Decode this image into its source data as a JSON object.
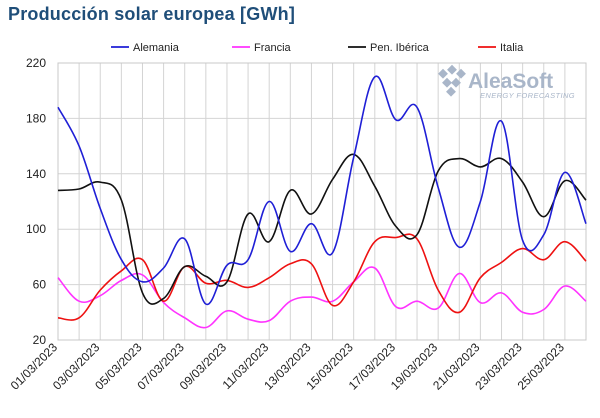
{
  "title": "Producción solar europea [GWh]",
  "watermark": {
    "brand": "AleaSoft",
    "tagline": "ENERGY FORECASTING",
    "color": "#a9b6c9"
  },
  "chart_data": {
    "type": "line",
    "title": "Producción solar europea [GWh]",
    "xlabel": "",
    "ylabel": "",
    "ylim": [
      20,
      220
    ],
    "yticks": [
      20,
      60,
      100,
      140,
      180,
      220
    ],
    "grid": true,
    "legend_position": "top",
    "x": [
      "01/03/2023",
      "02/03/2023",
      "03/03/2023",
      "04/03/2023",
      "05/03/2023",
      "06/03/2023",
      "07/03/2023",
      "08/03/2023",
      "09/03/2023",
      "10/03/2023",
      "11/03/2023",
      "12/03/2023",
      "13/03/2023",
      "14/03/2023",
      "15/03/2023",
      "16/03/2023",
      "17/03/2023",
      "18/03/2023",
      "19/03/2023",
      "20/03/2023",
      "21/03/2023",
      "22/03/2023",
      "23/03/2023",
      "24/03/2023",
      "25/03/2023",
      "26/03/2023"
    ],
    "xtick_labels": [
      "01/03/2023",
      "03/03/2023",
      "05/03/2023",
      "07/03/2023",
      "09/03/2023",
      "11/03/2023",
      "13/03/2023",
      "15/03/2023",
      "17/03/2023",
      "19/03/2023",
      "21/03/2023",
      "23/03/2023",
      "25/03/2023"
    ],
    "series": [
      {
        "name": "Alemania",
        "color": "#1f1fd6",
        "values": [
          188,
          160,
          115,
          78,
          62,
          72,
          93,
          46,
          74,
          78,
          120,
          84,
          104,
          83,
          152,
          210,
          179,
          188,
          130,
          87,
          120,
          178,
          92,
          96,
          141,
          104
        ]
      },
      {
        "name": "Francia",
        "color": "#ff33ff",
        "values": [
          65,
          48,
          52,
          63,
          67,
          47,
          36,
          29,
          41,
          35,
          34,
          48,
          51,
          48,
          62,
          72,
          44,
          48,
          43,
          68,
          47,
          54,
          40,
          42,
          59,
          48
        ]
      },
      {
        "name": "Pen. Ibérica",
        "color": "#111111",
        "values": [
          128,
          129,
          134,
          121,
          54,
          50,
          73,
          66,
          62,
          111,
          91,
          128,
          111,
          136,
          154,
          131,
          102,
          96,
          142,
          151,
          145,
          151,
          134,
          109,
          135,
          121
        ]
      },
      {
        "name": "Italia",
        "color": "#ee1111",
        "values": [
          36,
          36,
          56,
          70,
          78,
          48,
          73,
          61,
          63,
          58,
          65,
          75,
          75,
          45,
          62,
          91,
          94,
          93,
          56,
          40,
          65,
          76,
          86,
          78,
          91,
          77
        ]
      }
    ]
  }
}
